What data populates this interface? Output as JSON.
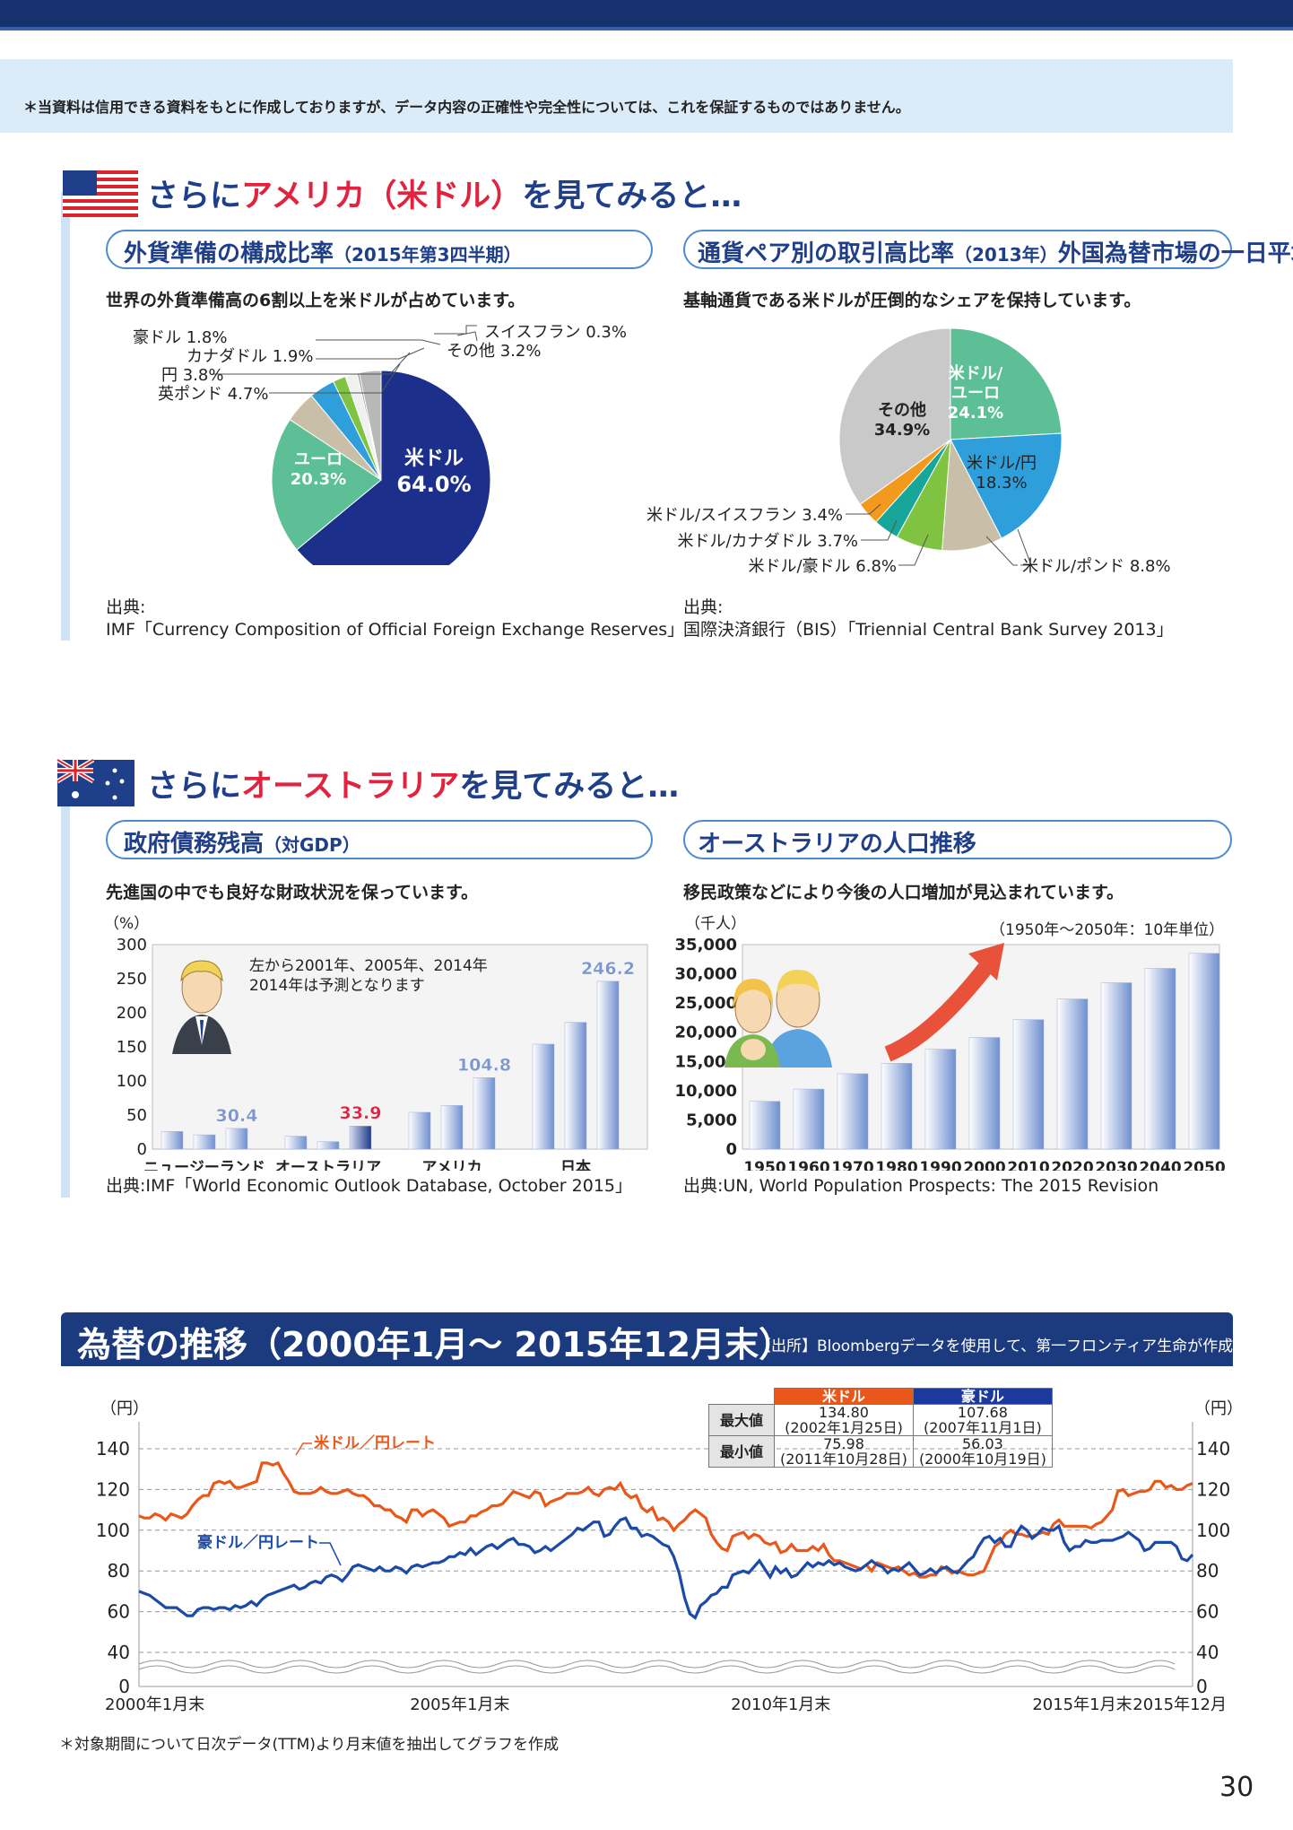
{
  "disclaimer": "＊当資料は信用できる資料をもとに作成しておりますが、データ内容の正確性や完全性については、これを保証するものではありません。",
  "usa": {
    "heading_pre": "さらに",
    "heading_red": "アメリカ（米ドル）",
    "heading_post": "を見てみると…",
    "reserves": {
      "title": "外貨準備の構成比率",
      "title_small": "（2015年第3四半期）",
      "lead": "世界の外貨準備高の6割以上を米ドルが占めています。",
      "src_label": "出典:",
      "src": "IMF「Currency Composition of Official Foreign Exchange Reserves」"
    },
    "turnover": {
      "title": "通貨ペア別の取引高比率",
      "title_small": "（2013年）",
      "title_post": "外国為替市場の一日平均",
      "lead": "基軸通貨である米ドルが圧倒的なシェアを保持しています。",
      "src_label": "出典:",
      "src": "国際決済銀行（BIS）「Triennial Central Bank Survey 2013」"
    }
  },
  "aus": {
    "heading_pre": "さらに",
    "heading_red": "オーストラリア",
    "heading_post": "を見てみると…",
    "debt": {
      "title": "政府債務残高",
      "title_small": "（対GDP）",
      "lead": "先進国の中でも良好な財政状況を保っています。",
      "note1": "左から2001年、2005年、2014年",
      "note2": "2014年は予測となります",
      "src": "出典:IMF「World Economic Outlook Database, October 2015」"
    },
    "population": {
      "title": "オーストラリアの人口推移",
      "lead": "移民政策などにより今後の人口増加が見込まれています。",
      "note": "（1950年〜2050年：10年単位）",
      "src": "出典:UN, World Population Prospects: The 2015 Revision"
    }
  },
  "fx": {
    "title": "為替の推移（2000年1月〜 2015年12月末）",
    "source": "【出所】Bloombergデータを使用して、第一フロンティア生命が作成",
    "table": {
      "col_usd": "米ドル",
      "col_aud": "豪ドル",
      "row_max": "最大値",
      "row_min": "最小値",
      "usd_max": "134.80",
      "usd_max_date": "(2002年1月25日)",
      "aud_max": "107.68",
      "aud_max_date": "(2007年11月1日)",
      "usd_min": "75.98",
      "usd_min_date": "(2011年10月28日)",
      "aud_min": "56.03",
      "aud_min_date": "(2000年10月19日)"
    },
    "note": "＊対象期間について日次データ(TTM)より月末値を抽出してグラフを作成"
  },
  "page_number": "30",
  "colors": {
    "navy": "#17306e",
    "usd_line": "#e9581a",
    "aud_line": "#1c4aa8",
    "accent_red": "#e0233f",
    "title_blue": "#1f3f8a"
  },
  "chart_data": [
    {
      "type": "pie",
      "title": "外貨準備の構成比率",
      "slices": [
        {
          "label": "米ドル",
          "value": 64.0,
          "text": "64.0%",
          "color": "#1c2f8a"
        },
        {
          "label": "ユーロ",
          "value": 20.3,
          "text": "20.3%",
          "color": "#5cbf96"
        },
        {
          "label": "英ポンド",
          "value": 4.7,
          "text": "4.7%",
          "color": "#c9bfa8"
        },
        {
          "label": "円",
          "value": 3.8,
          "text": "3.8%",
          "color": "#2f9fdc"
        },
        {
          "label": "カナダドル",
          "value": 1.9,
          "text": "1.9%",
          "color": "#7fc340"
        },
        {
          "label": "豪ドル",
          "value": 1.8,
          "text": "1.8%",
          "color": "#f0f0f0"
        },
        {
          "label": "スイスフラン",
          "value": 0.3,
          "text": "0.3%",
          "color": "#888888"
        },
        {
          "label": "その他",
          "value": 3.2,
          "text": "3.2%",
          "color": "#b8b8b8"
        }
      ]
    },
    {
      "type": "pie",
      "title": "通貨ペア別の取引高比率",
      "slices": [
        {
          "label": "米ドル/ユーロ",
          "value": 24.1,
          "text": "24.1%",
          "color": "#5cbf96"
        },
        {
          "label": "米ドル/円",
          "value": 18.3,
          "text": "18.3%",
          "color": "#2f9fdc"
        },
        {
          "label": "米ドル/ポンド",
          "value": 8.8,
          "text": "8.8%",
          "color": "#c9bfa8"
        },
        {
          "label": "米ドル/豪ドル",
          "value": 6.8,
          "text": "6.8%",
          "color": "#7fc340"
        },
        {
          "label": "米ドル/カナダドル",
          "value": 3.7,
          "text": "3.7%",
          "color": "#19a69a"
        },
        {
          "label": "米ドル/スイスフラン",
          "value": 3.4,
          "text": "3.4%",
          "color": "#f39a1e"
        },
        {
          "label": "その他",
          "value": 34.9,
          "text": "34.9%",
          "color": "#c9c9c9"
        }
      ]
    },
    {
      "type": "bar",
      "title": "政府債務残高（対GDP）",
      "ylabel": "（%）",
      "ylim": [
        0,
        300
      ],
      "yticks": [
        0,
        50,
        100,
        150,
        200,
        250,
        300
      ],
      "groups": [
        "ニュージーランド",
        "オーストラリア",
        "アメリカ",
        "日本"
      ],
      "series_years": [
        "2001",
        "2005",
        "2014"
      ],
      "values": [
        [
          26,
          21,
          30.4
        ],
        [
          19,
          11,
          33.9
        ],
        [
          54,
          64,
          104.8
        ],
        [
          154,
          186,
          246.2
        ]
      ],
      "labels": [
        null,
        null,
        "30.4",
        null,
        null,
        "33.9",
        null,
        null,
        "104.8",
        null,
        null,
        "246.2"
      ]
    },
    {
      "type": "bar",
      "title": "オーストラリアの人口推移",
      "ylabel": "（千人）",
      "ylim": [
        0,
        35000
      ],
      "yticks": [
        "0",
        "5,000",
        "10,000",
        "15,000",
        "20,000",
        "25,000",
        "30,000",
        "35,000"
      ],
      "categories": [
        "1950",
        "1960",
        "1970",
        "1980",
        "1990",
        "2000",
        "2010",
        "2020",
        "2030",
        "2040",
        "2050"
      ],
      "values": [
        8177,
        10276,
        12905,
        14692,
        17097,
        19107,
        22163,
        25697,
        28473,
        30934,
        33496
      ]
    },
    {
      "type": "line",
      "title": "為替の推移",
      "ylabel": "（円）",
      "ylim": [
        0,
        140
      ],
      "yticks": [
        0,
        40,
        60,
        80,
        100,
        120,
        140
      ],
      "xticks": [
        "2000年1月末",
        "2005年1月末",
        "2010年1月末",
        "2015年1月末",
        "2015年12月"
      ],
      "series": [
        {
          "name": "米ドル／円レート",
          "color": "#e9581a",
          "values": [
            107,
            106,
            106,
            108,
            107,
            105,
            108,
            107,
            106,
            108,
            112,
            115,
            117,
            117,
            123,
            124,
            123,
            124,
            121,
            121,
            122,
            123,
            124,
            133,
            133,
            132,
            133,
            128,
            124,
            119,
            118,
            118,
            118,
            119,
            121,
            119,
            118,
            118,
            119,
            120,
            118,
            117,
            117,
            115,
            112,
            112,
            110,
            110,
            107,
            106,
            104,
            110,
            110,
            107,
            109,
            110,
            108,
            106,
            102,
            103,
            104,
            104,
            107,
            107,
            109,
            110,
            112,
            112,
            113,
            116,
            119,
            118,
            117,
            116,
            119,
            118,
            112,
            114,
            115,
            116,
            118,
            118,
            118,
            119,
            121,
            118,
            117,
            120,
            121,
            120,
            123,
            118,
            116,
            117,
            111,
            109,
            111,
            105,
            106,
            104,
            100,
            103,
            105,
            108,
            110,
            108,
            106,
            98,
            94,
            91,
            90,
            97,
            98,
            99,
            96,
            98,
            97,
            94,
            93,
            94,
            89,
            90,
            93,
            90,
            90,
            90,
            92,
            90,
            93,
            88,
            85,
            85,
            84,
            83,
            82,
            81,
            83,
            80,
            84,
            83,
            82,
            81,
            82,
            80,
            78,
            79,
            77,
            77,
            78,
            78,
            82,
            81,
            79,
            80,
            79,
            78,
            78,
            79,
            80,
            86,
            92,
            94,
            98,
            100,
            98,
            98,
            97,
            97,
            98,
            99,
            98,
            103,
            105,
            102,
            102,
            102,
            102,
            102,
            101,
            103,
            104,
            107,
            110,
            119,
            120,
            117,
            118,
            119,
            119,
            120,
            124,
            124,
            121,
            122,
            120,
            120,
            122,
            123
          ]
        },
        {
          "name": "豪ドル／円レート",
          "color": "#1c4aa8",
          "values": [
            70,
            69,
            68,
            66,
            64,
            62,
            62,
            62,
            60,
            58,
            58,
            61,
            62,
            62,
            61,
            62,
            62,
            61,
            63,
            62,
            63,
            65,
            63,
            66,
            68,
            69,
            70,
            71,
            72,
            73,
            71,
            72,
            74,
            75,
            74,
            77,
            78,
            77,
            75,
            78,
            82,
            83,
            82,
            81,
            80,
            82,
            80,
            80,
            82,
            81,
            79,
            82,
            83,
            82,
            83,
            84,
            84,
            85,
            87,
            87,
            89,
            88,
            91,
            88,
            90,
            92,
            93,
            91,
            93,
            95,
            96,
            93,
            93,
            92,
            89,
            90,
            92,
            90,
            92,
            94,
            96,
            98,
            101,
            100,
            102,
            104,
            104,
            97,
            98,
            102,
            105,
            106,
            101,
            101,
            97,
            98,
            97,
            95,
            93,
            92,
            87,
            79,
            67,
            59,
            57,
            63,
            65,
            68,
            69,
            72,
            72,
            78,
            79,
            80,
            79,
            82,
            85,
            81,
            77,
            82,
            79,
            81,
            77,
            78,
            81,
            84,
            82,
            84,
            83,
            85,
            83,
            84,
            82,
            81,
            80,
            81,
            83,
            85,
            83,
            82,
            79,
            81,
            80,
            82,
            84,
            81,
            78,
            79,
            81,
            79,
            81,
            82,
            80,
            79,
            82,
            85,
            87,
            92,
            96,
            97,
            94,
            96,
            92,
            92,
            98,
            102,
            100,
            96,
            98,
            101,
            100,
            100,
            102,
            94,
            90,
            92,
            92,
            95,
            94,
            94,
            95,
            95,
            95,
            96,
            97,
            99,
            97,
            95,
            90,
            91,
            94,
            94,
            94,
            94,
            92,
            86,
            85,
            88
          ]
        }
      ]
    }
  ]
}
